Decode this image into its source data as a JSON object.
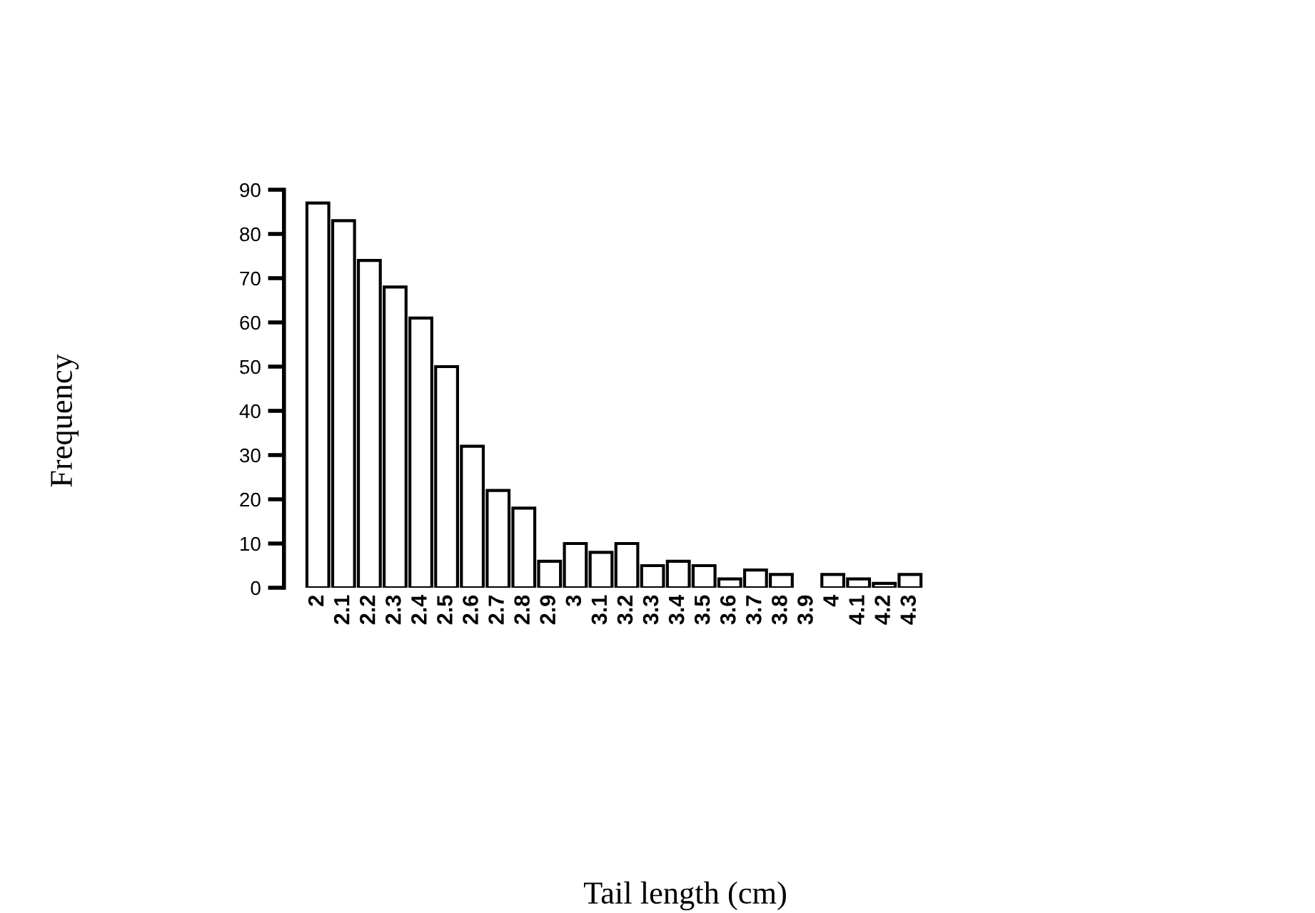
{
  "chart_data": {
    "type": "bar",
    "annotations": [
      "Frequency",
      "Tail length (cm)"
    ],
    "categories": [
      "2",
      "2.1",
      "2.2",
      "2.3",
      "2.4",
      "2.5",
      "2.6",
      "2.7",
      "2.8",
      "2.9",
      "3",
      "3.1",
      "3.2",
      "3.3",
      "3.4",
      "3.5",
      "3.6",
      "3.7",
      "3.8",
      "3.9",
      "4",
      "4.1",
      "4.2",
      "4.3"
    ],
    "values": [
      87,
      83,
      74,
      68,
      61,
      50,
      32,
      22,
      18,
      6,
      10,
      8,
      10,
      5,
      6,
      5,
      2,
      4,
      3,
      null,
      3,
      2,
      1,
      3
    ],
    "color": "#ffffff",
    "ylim": [
      0,
      90
    ],
    "yticks": [
      0,
      10,
      20,
      30,
      40,
      50,
      60,
      70,
      80,
      90
    ],
    "grid": false
  }
}
